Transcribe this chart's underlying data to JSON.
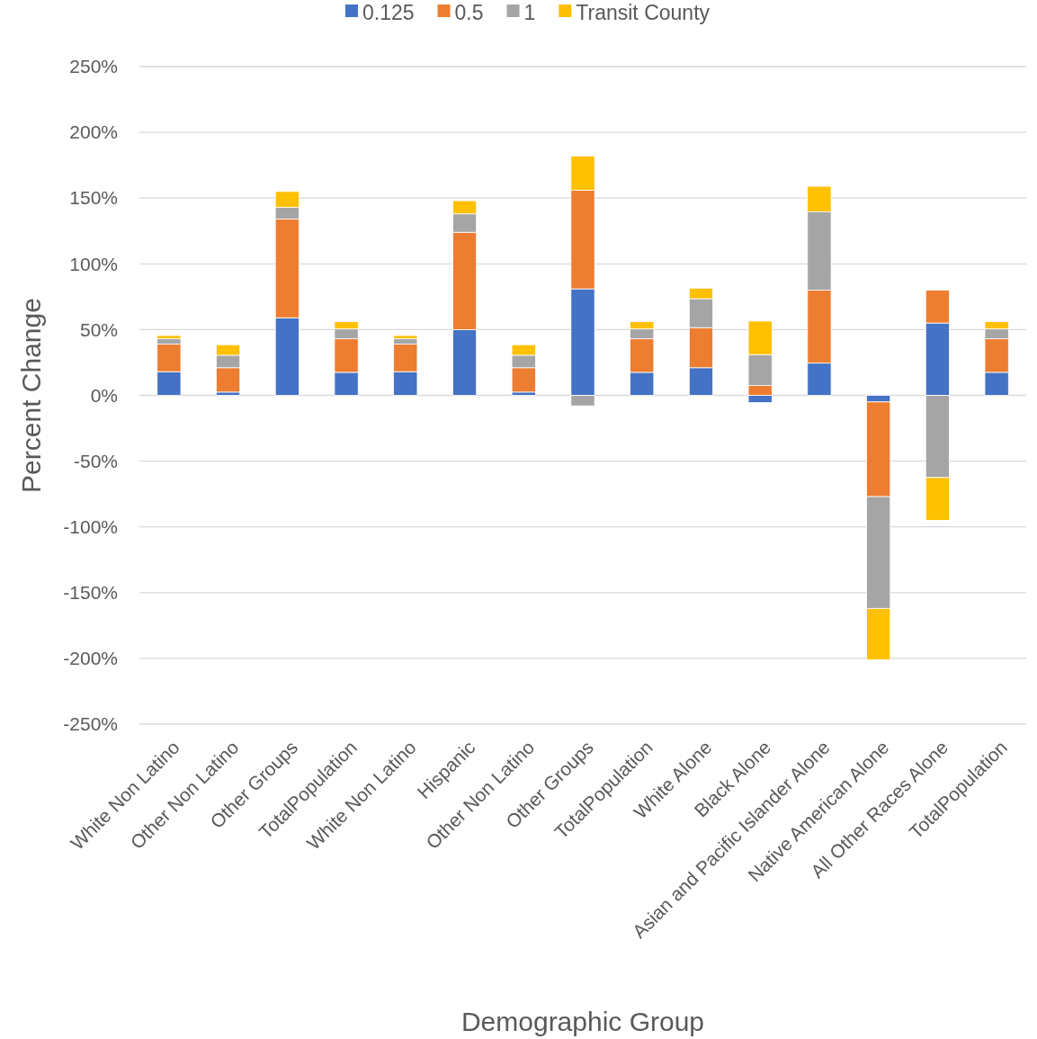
{
  "chart_data": {
    "type": "bar",
    "stacked": true,
    "xlabel": "Demographic Group",
    "ylabel": "Percent Change",
    "categories": [
      "White Non Latino",
      "Other Non Latino",
      "Other Groups",
      "TotalPopulation",
      "White Non Latino",
      "Hispanic",
      "Other Non Latino",
      "Other Groups",
      "TotalPopulation",
      "White Alone",
      "Black Alone",
      "Asian and Pacific Islander Alone",
      "Native American Alone",
      "All Other Races Alone",
      "TotalPopulation"
    ],
    "series": [
      {
        "name": "0.125",
        "color": "#4472c4",
        "values": [
          18,
          2.5,
          59,
          17.5,
          18,
          50,
          2.5,
          81,
          17.5,
          21,
          -5.5,
          24.5,
          -5,
          55,
          17.5
        ]
      },
      {
        "name": "0.5",
        "color": "#ed7d31",
        "values": [
          21,
          18.5,
          75,
          25.5,
          21,
          74,
          18.5,
          75,
          25.5,
          30.5,
          7.5,
          55.5,
          -72,
          25,
          25.5
        ]
      },
      {
        "name": "1",
        "color": "#a5a5a5",
        "values": [
          4,
          9.5,
          9,
          7.5,
          4,
          14,
          9.5,
          -8,
          7.5,
          22,
          23.5,
          59.5,
          -85,
          -62.5,
          7.5
        ]
      },
      {
        "name": "Transit County",
        "color": "#ffc000",
        "values": [
          2.5,
          8,
          12,
          5.5,
          2.5,
          10,
          8,
          26,
          5.5,
          8,
          25.5,
          19.5,
          -39,
          -32.5,
          5.5
        ]
      }
    ],
    "ylim": [
      -250,
      250
    ],
    "yticks": [
      {
        "value": -250,
        "label": "-250%"
      },
      {
        "value": -200,
        "label": "-200%"
      },
      {
        "value": -150,
        "label": "-150%"
      },
      {
        "value": -100,
        "label": "-100%"
      },
      {
        "value": -50,
        "label": "-50%"
      },
      {
        "value": 0,
        "label": "0%"
      },
      {
        "value": 50,
        "label": "50%"
      },
      {
        "value": 100,
        "label": "100%"
      },
      {
        "value": 150,
        "label": "150%"
      },
      {
        "value": 200,
        "label": "200%"
      },
      {
        "value": 250,
        "label": "250%"
      }
    ],
    "grid": "y",
    "legend": "top"
  }
}
